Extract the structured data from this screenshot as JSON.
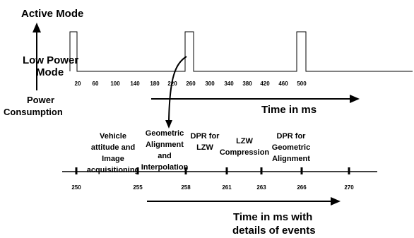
{
  "top": {
    "active_mode_label": "Active Mode",
    "low_power_label_line1": "Low Power",
    "low_power_label_line2": "Mode",
    "power_label_line1": "Power",
    "power_label_line2": "Consumption",
    "ticks": [
      "20",
      "60",
      "100",
      "140",
      "180",
      "220",
      "260",
      "300",
      "340",
      "380",
      "420",
      "460",
      "500"
    ],
    "time_label": "Time in ms"
  },
  "bottom": {
    "events": [
      {
        "lines": [
          "Vehicle",
          "attitude and",
          "Image",
          "acquisitioning"
        ]
      },
      {
        "lines": [
          "Geometric",
          "Alignment",
          "and",
          "Interpolation"
        ]
      },
      {
        "lines": [
          "DPR for",
          "LZW"
        ]
      },
      {
        "lines": [
          "LZW",
          "Compression"
        ]
      },
      {
        "lines": [
          "DPR for",
          "Geometric",
          "Alignment"
        ]
      }
    ],
    "ticks": [
      "250",
      "255",
      "258",
      "261",
      "263",
      "266",
      "270"
    ],
    "time_label_line1": "Time in ms with",
    "time_label_line2": "details of events"
  },
  "colors": {
    "ink": "#000000",
    "background": "#ffffff"
  }
}
